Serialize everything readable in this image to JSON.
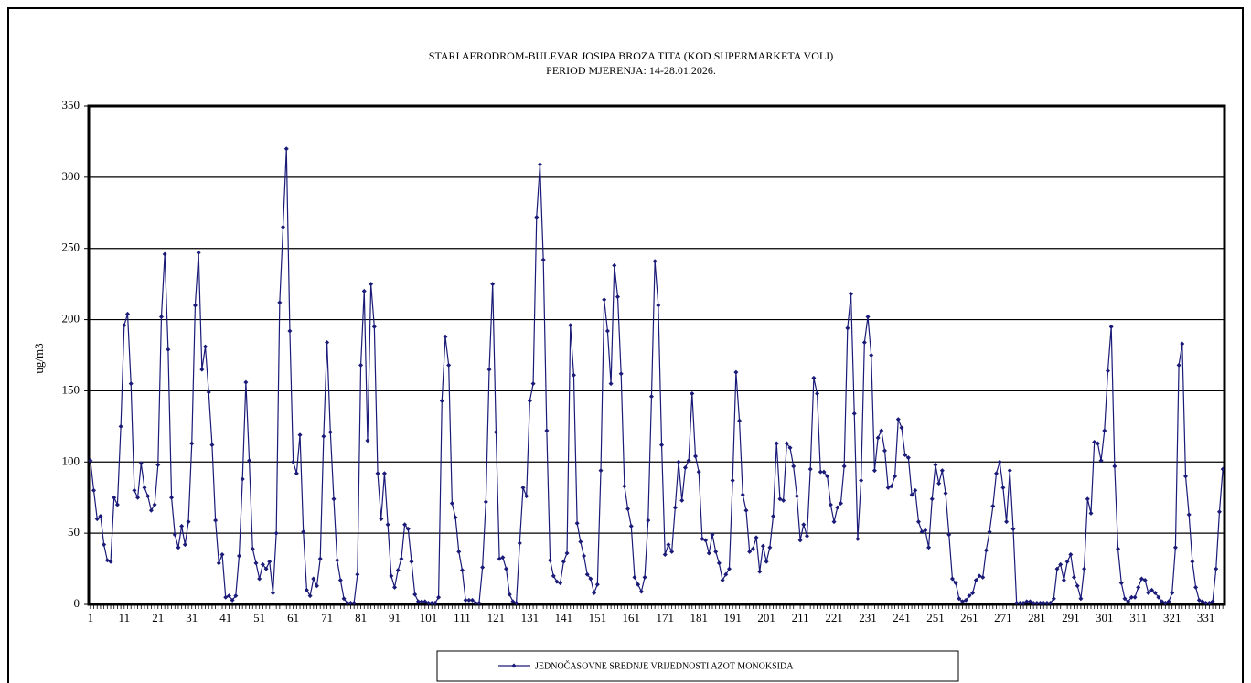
{
  "chart_data": {
    "type": "line",
    "title": "STARI AERODROM-BULEVAR  JOSIPA BROZA TITA (KOD SUPERMARKETA  VOLI)",
    "subtitle": "PERIOD MJERENJA:  14-28.01.2026.",
    "ylabel": "ug/m3",
    "ylim": [
      0,
      350
    ],
    "yticks": [
      0,
      50,
      100,
      150,
      200,
      250,
      300,
      350
    ],
    "grid": true,
    "legend": "bottom",
    "categories": [
      "1",
      null,
      null,
      null,
      null,
      null,
      null,
      null,
      null,
      null,
      "11",
      null,
      null,
      null,
      null,
      null,
      null,
      null,
      null,
      null,
      "21",
      null,
      null,
      null,
      null,
      null,
      null,
      null,
      null,
      null,
      "31",
      null,
      null,
      null,
      null,
      null,
      null,
      null,
      null,
      null,
      "41",
      null,
      null,
      null,
      null,
      null,
      null,
      null,
      null,
      null,
      "51",
      null,
      null,
      null,
      null,
      null,
      null,
      null,
      null,
      null,
      "61",
      null,
      null,
      null,
      null,
      null,
      null,
      null,
      null,
      null,
      "71",
      null,
      null,
      null,
      null,
      null,
      null,
      null,
      null,
      null,
      "81",
      null,
      null,
      null,
      null,
      null,
      null,
      null,
      null,
      null,
      "91",
      null,
      null,
      null,
      null,
      null,
      null,
      null,
      null,
      null,
      "101",
      null,
      null,
      null,
      null,
      null,
      null,
      null,
      null,
      null,
      "111",
      null,
      null,
      null,
      null,
      null,
      null,
      null,
      null,
      null,
      "121",
      null,
      null,
      null,
      null,
      null,
      null,
      null,
      null,
      null,
      "131",
      null,
      null,
      null,
      null,
      null,
      null,
      null,
      null,
      null,
      "141",
      null,
      null,
      null,
      null,
      null,
      null,
      null,
      null,
      null,
      "151",
      null,
      null,
      null,
      null,
      null,
      null,
      null,
      null,
      null,
      "161",
      null,
      null,
      null,
      null,
      null,
      null,
      null,
      null,
      null,
      "171",
      null,
      null,
      null,
      null,
      null,
      null,
      null,
      null,
      null,
      "181",
      null,
      null,
      null,
      null,
      null,
      null,
      null,
      null,
      null,
      "191",
      null,
      null,
      null,
      null,
      null,
      null,
      null,
      null,
      null,
      "201",
      null,
      null,
      null,
      null,
      null,
      null,
      null,
      null,
      null,
      "211",
      null,
      null,
      null,
      null,
      null,
      null,
      null,
      null,
      null,
      "221",
      null,
      null,
      null,
      null,
      null,
      null,
      null,
      null,
      null,
      "231",
      null,
      null,
      null,
      null,
      null,
      null,
      null,
      null,
      null,
      "241",
      null,
      null,
      null,
      null,
      null,
      null,
      null,
      null,
      null,
      "251",
      null,
      null,
      null,
      null,
      null,
      null,
      null,
      null,
      null,
      "261",
      null,
      null,
      null,
      null,
      null,
      null,
      null,
      null,
      null,
      "271",
      null,
      null,
      null,
      null,
      null,
      null,
      null,
      null,
      null,
      "281",
      null,
      null,
      null,
      null,
      null,
      null,
      null,
      null,
      null,
      "291",
      null,
      null,
      null,
      null,
      null,
      null,
      null,
      null,
      null,
      "301",
      null,
      null,
      null,
      null,
      null,
      null,
      null,
      null,
      null,
      "311",
      null,
      null,
      null,
      null,
      null,
      null,
      null,
      null,
      null,
      "321",
      null,
      null,
      null,
      null,
      null,
      null,
      null,
      null,
      null,
      "331",
      null,
      null,
      null,
      null,
      null
    ],
    "series": [
      {
        "name": "JEDNOČASOVNE SREDNJE VRIJEDNOSTI AZOT MONOKSIDA",
        "color": "#1a1a78",
        "values": [
          101,
          80,
          60,
          62,
          42,
          31,
          30,
          75,
          70,
          125,
          196,
          204,
          155,
          80,
          75,
          99,
          82,
          76,
          66,
          70,
          98,
          202,
          246,
          179,
          75,
          49,
          40,
          55,
          42,
          58,
          113,
          210,
          247,
          165,
          181,
          149,
          112,
          59,
          29,
          35,
          5,
          6,
          3,
          6,
          34,
          88,
          156,
          101,
          39,
          29,
          18,
          28,
          25,
          30,
          8,
          50,
          212,
          265,
          320,
          192,
          100,
          92,
          119,
          51,
          10,
          6,
          18,
          13,
          32,
          118,
          184,
          121,
          74,
          31,
          17,
          4,
          1,
          1,
          1,
          21,
          168,
          220,
          115,
          225,
          195,
          92,
          60,
          92,
          56,
          20,
          12,
          24,
          32,
          56,
          53,
          30,
          7,
          2,
          2,
          2,
          1,
          1,
          1,
          5,
          143,
          188,
          168,
          71,
          61,
          37,
          24,
          3,
          3,
          3,
          1,
          1,
          26,
          72,
          165,
          225,
          121,
          32,
          33,
          25,
          7,
          2,
          1,
          43,
          82,
          76,
          143,
          155,
          272,
          309,
          242,
          122,
          31,
          20,
          16,
          15,
          30,
          36,
          196,
          161,
          57,
          44,
          34,
          21,
          18,
          8,
          14,
          94,
          214,
          192,
          155,
          238,
          216,
          162,
          83,
          67,
          55,
          19,
          14,
          9,
          19,
          59,
          146,
          241,
          210,
          112,
          35,
          42,
          37,
          68,
          100,
          73,
          96,
          101,
          148,
          104,
          93,
          46,
          45,
          36,
          49,
          37,
          29,
          17,
          21,
          25,
          87,
          163,
          129,
          77,
          66,
          37,
          39,
          47,
          23,
          41,
          30,
          40,
          62,
          113,
          74,
          73,
          113,
          110,
          97,
          76,
          45,
          56,
          48,
          95,
          159,
          148,
          93,
          93,
          90,
          70,
          58,
          68,
          71,
          97,
          194,
          218,
          134,
          46,
          87,
          184,
          202,
          175,
          94,
          117,
          122,
          108,
          82,
          83,
          90,
          130,
          124,
          105,
          103,
          77,
          80,
          58,
          51,
          52,
          40,
          74,
          98,
          85,
          94,
          78,
          49,
          18,
          15,
          4,
          2,
          3,
          6,
          8,
          17,
          20,
          19,
          38,
          51,
          69,
          92,
          100,
          82,
          58,
          94,
          53,
          1,
          1,
          1,
          2,
          2,
          1,
          1,
          1,
          1,
          1,
          1,
          4,
          25,
          28,
          17,
          30,
          35,
          19,
          13,
          4,
          25,
          74,
          64,
          114,
          113,
          101,
          122,
          164,
          195,
          97,
          39,
          15,
          4,
          2,
          5,
          5,
          12,
          18,
          17,
          8,
          10,
          8,
          5,
          2,
          1,
          2,
          8,
          40,
          168,
          183,
          90,
          63,
          30,
          12,
          3,
          2,
          1,
          1,
          2,
          25,
          65,
          95
        ]
      }
    ]
  }
}
